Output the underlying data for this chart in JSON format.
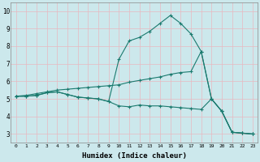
{
  "xlabel": "Humidex (Indice chaleur)",
  "xlim": [
    -0.5,
    23.5
  ],
  "ylim": [
    2.5,
    10.5
  ],
  "yticks": [
    3,
    4,
    5,
    6,
    7,
    8,
    9,
    10
  ],
  "xticks": [
    0,
    1,
    2,
    3,
    4,
    5,
    6,
    7,
    8,
    9,
    10,
    11,
    12,
    13,
    14,
    15,
    16,
    17,
    18,
    19,
    20,
    21,
    22,
    23
  ],
  "bg_color": "#cce8ec",
  "line_color": "#1a7a6e",
  "grid_color": "#b8d8dc",
  "line1_x": [
    0,
    1,
    2,
    3,
    4,
    5,
    6,
    7,
    8,
    9,
    10,
    11,
    12,
    13,
    14,
    15,
    16,
    17,
    18,
    19,
    20,
    21,
    22,
    23
  ],
  "line1_y": [
    5.15,
    5.15,
    5.2,
    5.35,
    5.4,
    5.25,
    5.1,
    5.05,
    5.0,
    4.85,
    7.25,
    8.3,
    8.5,
    8.85,
    9.3,
    9.75,
    9.3,
    8.7,
    7.7,
    5.0,
    4.3,
    3.1,
    3.05,
    3.0
  ],
  "line2_x": [
    0,
    1,
    2,
    3,
    4,
    5,
    6,
    7,
    8,
    9,
    10,
    11,
    12,
    13,
    14,
    15,
    16,
    17,
    18,
    19,
    20,
    21,
    22,
    23
  ],
  "line2_y": [
    5.15,
    5.2,
    5.3,
    5.4,
    5.5,
    5.55,
    5.6,
    5.65,
    5.7,
    5.75,
    5.8,
    5.95,
    6.05,
    6.15,
    6.25,
    6.4,
    6.5,
    6.55,
    7.7,
    5.0,
    4.3,
    3.1,
    3.05,
    3.0
  ],
  "line3_x": [
    0,
    1,
    2,
    3,
    4,
    5,
    6,
    7,
    8,
    9,
    10,
    11,
    12,
    13,
    14,
    15,
    16,
    17,
    18,
    19,
    20,
    21,
    22,
    23
  ],
  "line3_y": [
    5.15,
    5.15,
    5.2,
    5.35,
    5.4,
    5.25,
    5.1,
    5.05,
    5.0,
    4.85,
    4.6,
    4.55,
    4.65,
    4.6,
    4.6,
    4.55,
    4.5,
    4.45,
    4.4,
    5.0,
    4.3,
    3.1,
    3.05,
    3.0
  ],
  "marker": "+",
  "markersize": 3,
  "linewidth": 0.8
}
